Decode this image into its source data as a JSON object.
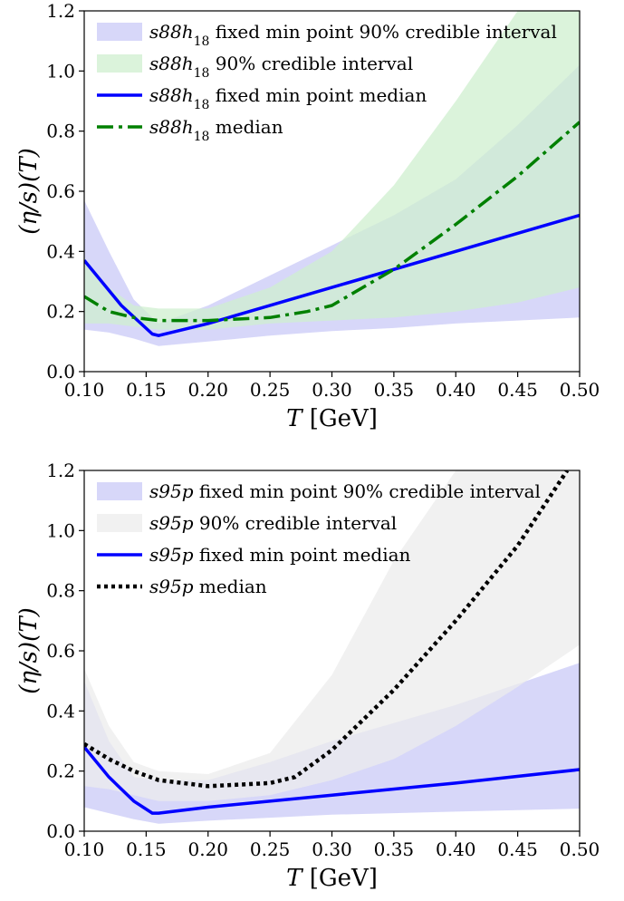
{
  "chart_data": [
    {
      "type": "line",
      "title": "",
      "xlabel": "T [GeV]",
      "ylabel": "(η/s)(T)",
      "xlim": [
        0.1,
        0.5
      ],
      "ylim": [
        0.0,
        1.2
      ],
      "xticks": [
        "0.10",
        "0.15",
        "0.20",
        "0.25",
        "0.30",
        "0.35",
        "0.40",
        "0.45",
        "0.50"
      ],
      "yticks": [
        "0.0",
        "0.2",
        "0.4",
        "0.6",
        "0.8",
        "1.0",
        "1.2"
      ],
      "legend_placement": "top-left",
      "grid": false,
      "series": [
        {
          "name": "s88h18 fixed min point 90% credible interval",
          "kind": "band",
          "color": "#c9c9f7",
          "x": [
            0.1,
            0.12,
            0.14,
            0.16,
            0.2,
            0.25,
            0.3,
            0.35,
            0.4,
            0.45,
            0.5
          ],
          "lower": [
            0.14,
            0.13,
            0.11,
            0.085,
            0.1,
            0.12,
            0.135,
            0.145,
            0.16,
            0.17,
            0.18
          ],
          "upper": [
            0.57,
            0.4,
            0.24,
            0.16,
            0.22,
            0.32,
            0.42,
            0.52,
            0.64,
            0.82,
            1.02
          ]
        },
        {
          "name": "s88h18 90% credible interval",
          "kind": "band",
          "color": "#cfefcf",
          "x": [
            0.1,
            0.12,
            0.14,
            0.16,
            0.2,
            0.25,
            0.3,
            0.35,
            0.4,
            0.45,
            0.5
          ],
          "lower": [
            0.16,
            0.16,
            0.15,
            0.14,
            0.14,
            0.16,
            0.17,
            0.18,
            0.2,
            0.23,
            0.28
          ],
          "upper": [
            0.38,
            0.28,
            0.22,
            0.21,
            0.21,
            0.28,
            0.4,
            0.62,
            0.9,
            1.2,
            1.2
          ]
        },
        {
          "name": "s88h18 fixed min point median",
          "kind": "line",
          "style": "solid",
          "color": "#0000ff",
          "x": [
            0.1,
            0.13,
            0.155,
            0.16,
            0.2,
            0.3,
            0.4,
            0.5
          ],
          "y": [
            0.37,
            0.22,
            0.125,
            0.12,
            0.16,
            0.28,
            0.4,
            0.52
          ]
        },
        {
          "name": "s88h18 median",
          "kind": "line",
          "style": "dashdot",
          "color": "#008000",
          "x": [
            0.1,
            0.12,
            0.14,
            0.16,
            0.2,
            0.25,
            0.28,
            0.3,
            0.35,
            0.4,
            0.45,
            0.5
          ],
          "y": [
            0.25,
            0.2,
            0.18,
            0.17,
            0.17,
            0.18,
            0.2,
            0.22,
            0.34,
            0.49,
            0.65,
            0.83
          ]
        }
      ]
    },
    {
      "type": "line",
      "title": "",
      "xlabel": "T [GeV]",
      "ylabel": "(η/s)(T)",
      "xlim": [
        0.1,
        0.5
      ],
      "ylim": [
        0.0,
        1.2
      ],
      "xticks": [
        "0.10",
        "0.15",
        "0.20",
        "0.25",
        "0.30",
        "0.35",
        "0.40",
        "0.45",
        "0.50"
      ],
      "yticks": [
        "0.0",
        "0.2",
        "0.4",
        "0.6",
        "0.8",
        "1.0",
        "1.2"
      ],
      "legend_placement": "top-left",
      "grid": false,
      "series": [
        {
          "name": "s95p fixed min point 90% credible interval",
          "kind": "band",
          "color": "#c9c9f7",
          "x": [
            0.1,
            0.12,
            0.14,
            0.16,
            0.2,
            0.25,
            0.3,
            0.35,
            0.4,
            0.45,
            0.5
          ],
          "lower": [
            0.08,
            0.06,
            0.04,
            0.025,
            0.035,
            0.045,
            0.055,
            0.06,
            0.065,
            0.07,
            0.075
          ],
          "upper": [
            0.5,
            0.3,
            0.18,
            0.17,
            0.17,
            0.23,
            0.3,
            0.36,
            0.42,
            0.49,
            0.56
          ]
        },
        {
          "name": "s95p 90% credible interval",
          "kind": "band",
          "color": "#ececec",
          "x": [
            0.1,
            0.12,
            0.14,
            0.16,
            0.2,
            0.25,
            0.3,
            0.35,
            0.4,
            0.45,
            0.5
          ],
          "lower": [
            0.15,
            0.14,
            0.12,
            0.1,
            0.1,
            0.12,
            0.17,
            0.24,
            0.35,
            0.48,
            0.62
          ],
          "upper": [
            0.54,
            0.35,
            0.23,
            0.2,
            0.19,
            0.26,
            0.52,
            0.9,
            1.2,
            1.2,
            1.2
          ]
        },
        {
          "name": "s95p fixed min point median",
          "kind": "line",
          "style": "solid",
          "color": "#0000ff",
          "x": [
            0.1,
            0.12,
            0.14,
            0.155,
            0.16,
            0.2,
            0.3,
            0.4,
            0.5
          ],
          "y": [
            0.28,
            0.18,
            0.1,
            0.06,
            0.06,
            0.08,
            0.12,
            0.16,
            0.205
          ]
        },
        {
          "name": "s95p median",
          "kind": "line",
          "style": "dotted",
          "color": "#000000",
          "x": [
            0.1,
            0.12,
            0.14,
            0.16,
            0.2,
            0.25,
            0.27,
            0.3,
            0.35,
            0.4,
            0.45,
            0.49
          ],
          "y": [
            0.29,
            0.24,
            0.2,
            0.17,
            0.15,
            0.16,
            0.18,
            0.27,
            0.47,
            0.7,
            0.95,
            1.2
          ]
        }
      ]
    }
  ]
}
